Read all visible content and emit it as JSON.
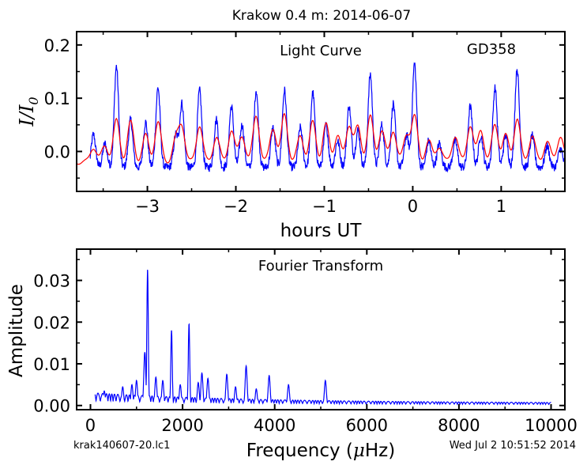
{
  "figure": {
    "title": "Krakow 0.4 m:  2014-06-07",
    "footer_left": "krak140607-20.lc1",
    "footer_right": "Wed Jul  2 10:51:52 2014"
  },
  "colors": {
    "observed": "#0000ff",
    "model": "#ff0000",
    "axes": "#000000",
    "background": "#ffffff"
  },
  "chart_data": [
    {
      "type": "line",
      "panel": "light_curve",
      "title": "Light Curve",
      "annotation": "GD358",
      "xlabel": "hours UT",
      "ylabel_main": "I/I",
      "ylabel_sub": "0",
      "xlim": [
        -3.8,
        1.72
      ],
      "ylim": [
        -0.075,
        0.225
      ],
      "x_ticks": [
        -3,
        -2,
        -1,
        0,
        1
      ],
      "x_tick_labels": [
        "−3",
        "−2",
        "−1",
        "0",
        "1"
      ],
      "y_ticks": [
        0.0,
        0.1,
        0.2
      ],
      "y_tick_labels": [
        "0.0",
        "0.1",
        "0.2"
      ],
      "x_start": -3.65,
      "x_end": 1.72,
      "model_x_start": -3.8,
      "model_x_end": 1.72,
      "peaks": [
        {
          "t": -3.61,
          "obs": 0.032,
          "model": 0.008
        },
        {
          "t": -3.48,
          "obs": 0.015,
          "model": 0.01
        },
        {
          "t": -3.35,
          "obs": 0.16,
          "model": 0.058
        },
        {
          "t": -3.19,
          "obs": 0.06,
          "model": 0.055
        },
        {
          "t": -3.02,
          "obs": 0.055,
          "model": 0.03
        },
        {
          "t": -2.88,
          "obs": 0.12,
          "model": 0.055
        },
        {
          "t": -2.68,
          "obs": 0.03,
          "model": 0.02
        },
        {
          "t": -2.61,
          "obs": 0.09,
          "model": 0.046
        },
        {
          "t": -2.41,
          "obs": 0.115,
          "model": 0.05
        },
        {
          "t": -2.22,
          "obs": 0.06,
          "model": 0.028
        },
        {
          "t": -2.05,
          "obs": 0.085,
          "model": 0.04
        },
        {
          "t": -1.93,
          "obs": 0.05,
          "model": 0.03
        },
        {
          "t": -1.77,
          "obs": 0.115,
          "model": 0.068
        },
        {
          "t": -1.58,
          "obs": 0.045,
          "model": 0.045
        },
        {
          "t": -1.45,
          "obs": 0.115,
          "model": 0.07
        },
        {
          "t": -1.27,
          "obs": 0.045,
          "model": 0.03
        },
        {
          "t": -1.13,
          "obs": 0.11,
          "model": 0.055
        },
        {
          "t": -0.98,
          "obs": 0.05,
          "model": 0.05
        },
        {
          "t": -0.85,
          "obs": 0.02,
          "model": 0.03
        },
        {
          "t": -0.72,
          "obs": 0.085,
          "model": 0.05
        },
        {
          "t": -0.62,
          "obs": 0.04,
          "model": 0.045
        },
        {
          "t": -0.48,
          "obs": 0.145,
          "model": 0.065
        },
        {
          "t": -0.35,
          "obs": 0.05,
          "model": 0.04
        },
        {
          "t": -0.22,
          "obs": 0.09,
          "model": 0.04
        },
        {
          "t": -0.07,
          "obs": 0.03,
          "model": 0.03
        },
        {
          "t": 0.02,
          "obs": 0.165,
          "model": 0.065
        },
        {
          "t": 0.18,
          "obs": 0.02,
          "model": 0.02
        },
        {
          "t": 0.3,
          "obs": 0.015,
          "model": 0.01
        },
        {
          "t": 0.48,
          "obs": 0.02,
          "model": 0.03
        },
        {
          "t": 0.65,
          "obs": 0.085,
          "model": 0.05
        },
        {
          "t": 0.77,
          "obs": 0.03,
          "model": 0.04
        },
        {
          "t": 0.93,
          "obs": 0.12,
          "model": 0.05
        },
        {
          "t": 1.05,
          "obs": 0.03,
          "model": 0.03
        },
        {
          "t": 1.18,
          "obs": 0.155,
          "model": 0.062
        },
        {
          "t": 1.35,
          "obs": 0.03,
          "model": 0.03
        },
        {
          "t": 1.52,
          "obs": 0.01,
          "model": 0.02
        },
        {
          "t": 1.67,
          "obs": 0.005,
          "model": 0.03
        }
      ],
      "baseline_obs": -0.03,
      "baseline_model": -0.02,
      "peak_width_obs": 0.035,
      "peak_width_model": 0.05,
      "noise_obs": 0.008,
      "series": [
        {
          "name": "",
          "role": "observed",
          "color": "#0000ff"
        },
        {
          "name": "",
          "role": "model",
          "color": "#ff0000"
        }
      ]
    },
    {
      "type": "line",
      "panel": "fourier_transform",
      "title": "Fourier Transform",
      "xlabel_prefix": "Frequency (",
      "xlabel_mu": "μ",
      "xlabel_suffix": "Hz)",
      "ylabel": "Amplitude",
      "xlim": [
        -300,
        10300
      ],
      "ylim": [
        -0.001,
        0.0375
      ],
      "x_ticks": [
        0,
        2000,
        4000,
        6000,
        8000,
        10000
      ],
      "x_tick_labels": [
        "0",
        "2000",
        "4000",
        "6000",
        "8000",
        "10000"
      ],
      "y_ticks": [
        0.0,
        0.01,
        0.02,
        0.03
      ],
      "y_tick_labels": [
        "0.00",
        "0.01",
        "0.02",
        "0.03"
      ],
      "freq_start": 100,
      "freq_end": 10000,
      "peaks": [
        {
          "f": 1180,
          "a": 0.0128
        },
        {
          "f": 1240,
          "a": 0.0327
        },
        {
          "f": 1760,
          "a": 0.0181
        },
        {
          "f": 2140,
          "a": 0.0196
        },
        {
          "f": 2340,
          "a": 0.0055
        },
        {
          "f": 2420,
          "a": 0.0078
        },
        {
          "f": 2550,
          "a": 0.0065
        },
        {
          "f": 2960,
          "a": 0.0075
        },
        {
          "f": 3380,
          "a": 0.0095
        },
        {
          "f": 3880,
          "a": 0.0072
        },
        {
          "f": 4300,
          "a": 0.005
        },
        {
          "f": 5100,
          "a": 0.006
        },
        {
          "f": 1000,
          "a": 0.006
        },
        {
          "f": 900,
          "a": 0.005
        },
        {
          "f": 700,
          "a": 0.0045
        },
        {
          "f": 300,
          "a": 0.0035
        },
        {
          "f": 1420,
          "a": 0.0068
        },
        {
          "f": 1570,
          "a": 0.006
        },
        {
          "f": 1950,
          "a": 0.005
        },
        {
          "f": 3150,
          "a": 0.0045
        },
        {
          "f": 3600,
          "a": 0.004
        }
      ],
      "series": [
        {
          "name": "",
          "color": "#0000ff"
        }
      ]
    }
  ]
}
